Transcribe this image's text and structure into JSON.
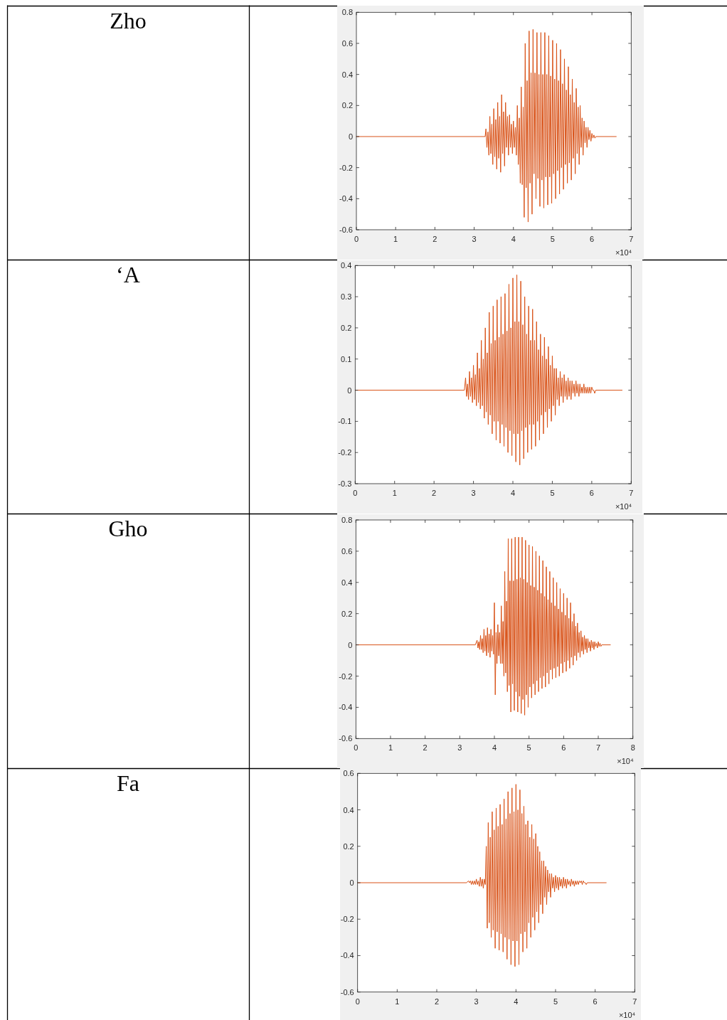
{
  "chart_data": [
    {
      "type": "other",
      "title": "Zho"
    },
    {
      "type": "line",
      "color": "#d95319",
      "xlim": [
        0,
        7
      ],
      "ylim": [
        -0.6,
        0.8
      ],
      "xticks": [
        0,
        1,
        2,
        3,
        4,
        5,
        6,
        7
      ],
      "yticks": [
        -0.6,
        -0.4,
        -0.2,
        0,
        0.2,
        0.4,
        0.6,
        0.8
      ],
      "annotations": [
        "×10⁴"
      ],
      "x": [
        0,
        3.28,
        3.3,
        3.325,
        3.35,
        3.375,
        3.4,
        3.425,
        3.45,
        3.475,
        3.5,
        3.525,
        3.55,
        3.575,
        3.6,
        3.625,
        3.65,
        3.675,
        3.7,
        3.725,
        3.75,
        3.775,
        3.8,
        3.825,
        3.85,
        3.875,
        3.9,
        3.925,
        3.95,
        3.975,
        4,
        4.025,
        4.05,
        4.075,
        4.1,
        4.125,
        4.15,
        4.175,
        4.2,
        4.225,
        4.25,
        4.275,
        4.3,
        4.325,
        4.35,
        4.375,
        4.4,
        4.425,
        4.45,
        4.475,
        4.5,
        4.525,
        4.55,
        4.575,
        4.6,
        4.625,
        4.65,
        4.675,
        4.7,
        4.725,
        4.75,
        4.775,
        4.8,
        4.825,
        4.85,
        4.875,
        4.9,
        4.925,
        4.95,
        4.975,
        5,
        5.025,
        5.05,
        5.075,
        5.1,
        5.125,
        5.15,
        5.175,
        5.2,
        5.225,
        5.25,
        5.275,
        5.3,
        5.325,
        5.35,
        5.375,
        5.4,
        5.425,
        5.45,
        5.475,
        5.5,
        5.525,
        5.55,
        5.575,
        5.6,
        5.625,
        5.65,
        5.675,
        5.7,
        5.725,
        5.75,
        5.775,
        5.8,
        5.825,
        5.85,
        5.875,
        5.9,
        5.925,
        5.95,
        5.975,
        6,
        6.025,
        6.05,
        6.075,
        6.1,
        6.62
      ],
      "values": [
        0,
        0,
        0.05,
        -0.07,
        0.03,
        -0.12,
        0.13,
        -0.11,
        0.08,
        -0.18,
        0.18,
        -0.13,
        0.11,
        -0.21,
        0.22,
        -0.14,
        0.13,
        -0.23,
        0.27,
        -0.11,
        0.16,
        -0.19,
        0.22,
        -0.07,
        0.13,
        -0.12,
        0.14,
        -0.07,
        0.08,
        -0.11,
        0.1,
        -0.07,
        0.06,
        -0.12,
        0.2,
        -0.18,
        0.12,
        -0.3,
        0.32,
        -0.31,
        0.19,
        -0.52,
        0.6,
        -0.33,
        0.36,
        -0.55,
        0.68,
        -0.3,
        0.41,
        -0.5,
        0.69,
        -0.24,
        0.41,
        -0.4,
        0.67,
        -0.27,
        0.4,
        -0.45,
        0.67,
        -0.28,
        0.4,
        -0.46,
        0.67,
        -0.26,
        0.4,
        -0.44,
        0.65,
        -0.26,
        0.39,
        -0.43,
        0.62,
        -0.24,
        0.37,
        -0.4,
        0.6,
        -0.22,
        0.36,
        -0.37,
        0.56,
        -0.2,
        0.34,
        -0.34,
        0.5,
        -0.18,
        0.3,
        -0.3,
        0.45,
        -0.17,
        0.27,
        -0.28,
        0.37,
        -0.14,
        0.22,
        -0.24,
        0.31,
        -0.11,
        0.19,
        -0.18,
        0.2,
        -0.07,
        0.12,
        -0.12,
        0.1,
        -0.04,
        0.06,
        -0.07,
        0.06,
        -0.02,
        0.04,
        -0.03,
        0.02,
        -0.01,
        0.01,
        -0.01,
        0,
        0
      ]
    },
    {
      "type": "other",
      "title": "‘A"
    },
    {
      "type": "line",
      "color": "#d95319",
      "xlim": [
        0,
        7
      ],
      "ylim": [
        -0.3,
        0.4
      ],
      "xticks": [
        0,
        1,
        2,
        3,
        4,
        5,
        6,
        7
      ],
      "yticks": [
        -0.3,
        -0.2,
        -0.1,
        0,
        0.1,
        0.2,
        0.3,
        0.4
      ],
      "annotations": [
        "×10⁴"
      ],
      "x": [
        0,
        2.77,
        2.8,
        2.825,
        2.85,
        2.875,
        2.9,
        2.925,
        2.95,
        2.975,
        3,
        3.025,
        3.05,
        3.075,
        3.1,
        3.125,
        3.15,
        3.175,
        3.2,
        3.225,
        3.25,
        3.275,
        3.3,
        3.325,
        3.35,
        3.375,
        3.4,
        3.425,
        3.45,
        3.475,
        3.5,
        3.525,
        3.55,
        3.575,
        3.6,
        3.625,
        3.65,
        3.675,
        3.7,
        3.725,
        3.75,
        3.775,
        3.8,
        3.825,
        3.85,
        3.875,
        3.9,
        3.925,
        3.95,
        3.975,
        4,
        4.025,
        4.05,
        4.075,
        4.1,
        4.125,
        4.15,
        4.175,
        4.2,
        4.225,
        4.25,
        4.275,
        4.3,
        4.325,
        4.35,
        4.375,
        4.4,
        4.425,
        4.45,
        4.475,
        4.5,
        4.525,
        4.55,
        4.575,
        4.6,
        4.625,
        4.65,
        4.675,
        4.7,
        4.725,
        4.75,
        4.775,
        4.8,
        4.825,
        4.85,
        4.875,
        4.9,
        4.925,
        4.95,
        4.975,
        5,
        5.025,
        5.05,
        5.075,
        5.1,
        5.125,
        5.15,
        5.175,
        5.2,
        5.225,
        5.25,
        5.275,
        5.3,
        5.325,
        5.35,
        5.375,
        5.4,
        5.425,
        5.45,
        5.475,
        5.5,
        5.525,
        5.55,
        5.575,
        5.6,
        5.625,
        5.65,
        5.675,
        5.7,
        5.725,
        5.75,
        5.775,
        5.8,
        5.825,
        5.85,
        5.875,
        5.9,
        5.925,
        5.95,
        5.975,
        6,
        6.025,
        6.05,
        6.075,
        6.1,
        6.77
      ],
      "values": [
        0,
        0,
        0.04,
        -0.02,
        0.02,
        -0.03,
        0.06,
        -0.02,
        0.04,
        -0.04,
        0.08,
        -0.03,
        0.05,
        -0.05,
        0.12,
        -0.04,
        0.07,
        -0.06,
        0.16,
        -0.05,
        0.1,
        -0.09,
        0.2,
        -0.07,
        0.12,
        -0.11,
        0.25,
        -0.08,
        0.15,
        -0.14,
        0.27,
        -0.1,
        0.16,
        -0.16,
        0.29,
        -0.1,
        0.17,
        -0.17,
        0.3,
        -0.11,
        0.18,
        -0.18,
        0.31,
        -0.12,
        0.19,
        -0.2,
        0.34,
        -0.13,
        0.2,
        -0.21,
        0.36,
        -0.14,
        0.22,
        -0.23,
        0.37,
        -0.14,
        0.22,
        -0.24,
        0.35,
        -0.13,
        0.21,
        -0.22,
        0.3,
        -0.12,
        0.18,
        -0.2,
        0.27,
        -0.11,
        0.16,
        -0.19,
        0.26,
        -0.11,
        0.16,
        -0.18,
        0.22,
        -0.1,
        0.13,
        -0.16,
        0.18,
        -0.08,
        0.11,
        -0.14,
        0.17,
        -0.07,
        0.1,
        -0.12,
        0.14,
        -0.06,
        0.08,
        -0.1,
        0.11,
        -0.05,
        0.07,
        -0.08,
        0.07,
        -0.03,
        0.04,
        -0.05,
        0.06,
        -0.02,
        0.04,
        -0.04,
        0.05,
        -0.02,
        0.03,
        -0.03,
        0.04,
        -0.02,
        0.03,
        -0.03,
        0.03,
        -0.01,
        0.02,
        -0.02,
        0.03,
        -0.01,
        0.02,
        -0.02,
        0.02,
        -0.01,
        0.01,
        -0.01,
        0.02,
        -0.01,
        0.01,
        -0.01,
        0.01,
        -0.01,
        0.01,
        -0.01,
        0.01,
        0,
        0,
        -0.01,
        0,
        0
      ]
    },
    {
      "type": "other",
      "title": "Gho"
    },
    {
      "type": "line",
      "color": "#d95319",
      "xlim": [
        0,
        8
      ],
      "ylim": [
        -0.6,
        0.8
      ],
      "xticks": [
        0,
        1,
        2,
        3,
        4,
        5,
        6,
        7,
        8
      ],
      "yticks": [
        -0.6,
        -0.4,
        -0.2,
        0,
        0.2,
        0.4,
        0.6,
        0.8
      ],
      "annotations": [
        "×10⁴"
      ],
      "x": [
        0,
        3.45,
        3.5,
        3.525,
        3.55,
        3.575,
        3.6,
        3.625,
        3.65,
        3.675,
        3.7,
        3.725,
        3.75,
        3.775,
        3.8,
        3.825,
        3.85,
        3.875,
        3.9,
        3.925,
        3.95,
        3.975,
        4,
        4.025,
        4.05,
        4.075,
        4.1,
        4.125,
        4.15,
        4.175,
        4.2,
        4.225,
        4.25,
        4.275,
        4.3,
        4.325,
        4.35,
        4.375,
        4.4,
        4.425,
        4.45,
        4.475,
        4.5,
        4.525,
        4.55,
        4.575,
        4.6,
        4.625,
        4.65,
        4.675,
        4.7,
        4.725,
        4.75,
        4.775,
        4.8,
        4.825,
        4.85,
        4.875,
        4.9,
        4.925,
        4.95,
        4.975,
        5,
        5.025,
        5.05,
        5.075,
        5.1,
        5.125,
        5.15,
        5.175,
        5.2,
        5.225,
        5.25,
        5.275,
        5.3,
        5.325,
        5.35,
        5.375,
        5.4,
        5.425,
        5.45,
        5.475,
        5.5,
        5.525,
        5.55,
        5.575,
        5.6,
        5.625,
        5.65,
        5.675,
        5.7,
        5.725,
        5.75,
        5.775,
        5.8,
        5.825,
        5.85,
        5.875,
        5.9,
        5.925,
        5.95,
        5.975,
        6,
        6.025,
        6.05,
        6.075,
        6.1,
        6.125,
        6.15,
        6.175,
        6.2,
        6.225,
        6.25,
        6.275,
        6.3,
        6.325,
        6.35,
        6.375,
        6.4,
        6.425,
        6.45,
        6.475,
        6.5,
        6.525,
        6.55,
        6.575,
        6.6,
        6.625,
        6.65,
        6.675,
        6.7,
        6.725,
        6.75,
        6.775,
        6.8,
        6.825,
        6.85,
        6.875,
        6.9,
        6.925,
        6.95,
        6.975,
        7,
        7.025,
        7.05,
        7.075,
        7.1,
        7.35
      ],
      "values": [
        0,
        0,
        0.03,
        -0.02,
        0.02,
        -0.03,
        0.06,
        -0.03,
        0.04,
        -0.05,
        0.1,
        -0.04,
        0.06,
        -0.07,
        0.11,
        -0.05,
        0.07,
        -0.08,
        0.1,
        -0.04,
        0.06,
        -0.06,
        0.27,
        -0.32,
        0.08,
        -0.12,
        0.13,
        -0.07,
        0.08,
        -0.12,
        0.25,
        -0.12,
        0.15,
        -0.2,
        0.47,
        -0.18,
        0.28,
        -0.3,
        0.68,
        -0.26,
        0.41,
        -0.43,
        0.68,
        -0.25,
        0.41,
        -0.42,
        0.69,
        -0.3,
        0.42,
        -0.43,
        0.69,
        -0.33,
        0.43,
        -0.44,
        0.69,
        -0.35,
        0.42,
        -0.45,
        0.67,
        -0.32,
        0.4,
        -0.4,
        0.64,
        -0.27,
        0.38,
        -0.34,
        0.63,
        -0.25,
        0.37,
        -0.32,
        0.6,
        -0.23,
        0.35,
        -0.3,
        0.57,
        -0.21,
        0.33,
        -0.28,
        0.54,
        -0.2,
        0.31,
        -0.27,
        0.5,
        -0.18,
        0.29,
        -0.25,
        0.47,
        -0.16,
        0.27,
        -0.22,
        0.43,
        -0.15,
        0.25,
        -0.21,
        0.4,
        -0.14,
        0.23,
        -0.2,
        0.36,
        -0.12,
        0.21,
        -0.18,
        0.33,
        -0.11,
        0.19,
        -0.17,
        0.3,
        -0.1,
        0.17,
        -0.15,
        0.27,
        -0.08,
        0.15,
        -0.13,
        0.2,
        -0.07,
        0.12,
        -0.1,
        0.14,
        -0.05,
        0.08,
        -0.08,
        0.09,
        -0.04,
        0.05,
        -0.06,
        0.06,
        -0.03,
        0.04,
        -0.05,
        0.04,
        -0.02,
        0.02,
        -0.04,
        0.03,
        -0.02,
        0.02,
        -0.03,
        0.02,
        -0.01,
        0.01,
        -0.02,
        0.02,
        -0.01,
        0.01,
        -0.01,
        0,
        0
      ]
    },
    {
      "type": "other",
      "title": "Fa"
    },
    {
      "type": "line",
      "color": "#d95319",
      "xlim": [
        0,
        7
      ],
      "ylim": [
        -0.6,
        0.6
      ],
      "xticks": [
        0,
        1,
        2,
        3,
        4,
        5,
        6,
        7
      ],
      "yticks": [
        -0.6,
        -0.4,
        -0.2,
        0,
        0.2,
        0.4,
        0.6
      ],
      "annotations": [
        "×10⁴"
      ],
      "x": [
        0,
        2.75,
        2.8,
        2.825,
        2.85,
        2.875,
        2.9,
        2.925,
        2.95,
        2.975,
        3,
        3.025,
        3.05,
        3.075,
        3.1,
        3.125,
        3.15,
        3.175,
        3.2,
        3.225,
        3.25,
        3.275,
        3.3,
        3.325,
        3.35,
        3.375,
        3.4,
        3.425,
        3.45,
        3.475,
        3.5,
        3.525,
        3.55,
        3.575,
        3.6,
        3.625,
        3.65,
        3.675,
        3.7,
        3.725,
        3.75,
        3.775,
        3.8,
        3.825,
        3.85,
        3.875,
        3.9,
        3.925,
        3.95,
        3.975,
        4,
        4.025,
        4.05,
        4.075,
        4.1,
        4.125,
        4.15,
        4.175,
        4.2,
        4.225,
        4.25,
        4.275,
        4.3,
        4.325,
        4.35,
        4.375,
        4.4,
        4.425,
        4.45,
        4.475,
        4.5,
        4.525,
        4.55,
        4.575,
        4.6,
        4.625,
        4.65,
        4.675,
        4.7,
        4.725,
        4.75,
        4.775,
        4.8,
        4.825,
        4.85,
        4.875,
        4.9,
        4.925,
        4.95,
        4.975,
        5,
        5.025,
        5.05,
        5.075,
        5.1,
        5.125,
        5.15,
        5.175,
        5.2,
        5.225,
        5.25,
        5.275,
        5.3,
        5.325,
        5.35,
        5.375,
        5.4,
        5.425,
        5.45,
        5.475,
        5.5,
        5.525,
        5.55,
        5.575,
        5.6,
        5.625,
        5.65,
        5.675,
        5.7,
        5.725,
        5.75,
        5.775,
        5.8,
        6.28
      ],
      "values": [
        0,
        0,
        0.01,
        0,
        0.01,
        -0.01,
        0.01,
        -0.01,
        0.01,
        -0.01,
        0.02,
        -0.01,
        0.01,
        -0.02,
        0.03,
        -0.02,
        0.02,
        -0.03,
        0.02,
        -0.01,
        0.2,
        -0.25,
        0.33,
        -0.22,
        0.25,
        -0.3,
        0.39,
        -0.26,
        0.29,
        -0.36,
        0.41,
        -0.27,
        0.31,
        -0.37,
        0.43,
        -0.28,
        0.32,
        -0.38,
        0.46,
        -0.3,
        0.35,
        -0.42,
        0.5,
        -0.31,
        0.38,
        -0.45,
        0.52,
        -0.32,
        0.39,
        -0.46,
        0.54,
        -0.32,
        0.4,
        -0.45,
        0.51,
        -0.28,
        0.38,
        -0.38,
        0.42,
        -0.27,
        0.32,
        -0.36,
        0.34,
        -0.22,
        0.25,
        -0.3,
        0.32,
        -0.19,
        0.24,
        -0.26,
        0.27,
        -0.16,
        0.2,
        -0.22,
        0.17,
        -0.12,
        0.12,
        -0.17,
        0.12,
        -0.08,
        0.09,
        -0.12,
        0.07,
        -0.05,
        0.05,
        -0.08,
        0.05,
        -0.03,
        0.03,
        -0.05,
        0.04,
        -0.03,
        0.03,
        -0.04,
        0.03,
        -0.02,
        0.02,
        -0.03,
        0.03,
        -0.02,
        0.02,
        -0.03,
        0.02,
        -0.01,
        0.01,
        -0.02,
        0.02,
        -0.01,
        0.01,
        -0.02,
        0.01,
        -0.01,
        0.01,
        -0.01,
        0.01,
        0,
        0.01,
        -0.01,
        0.01,
        0,
        0,
        -0.01,
        0,
        0
      ]
    }
  ]
}
